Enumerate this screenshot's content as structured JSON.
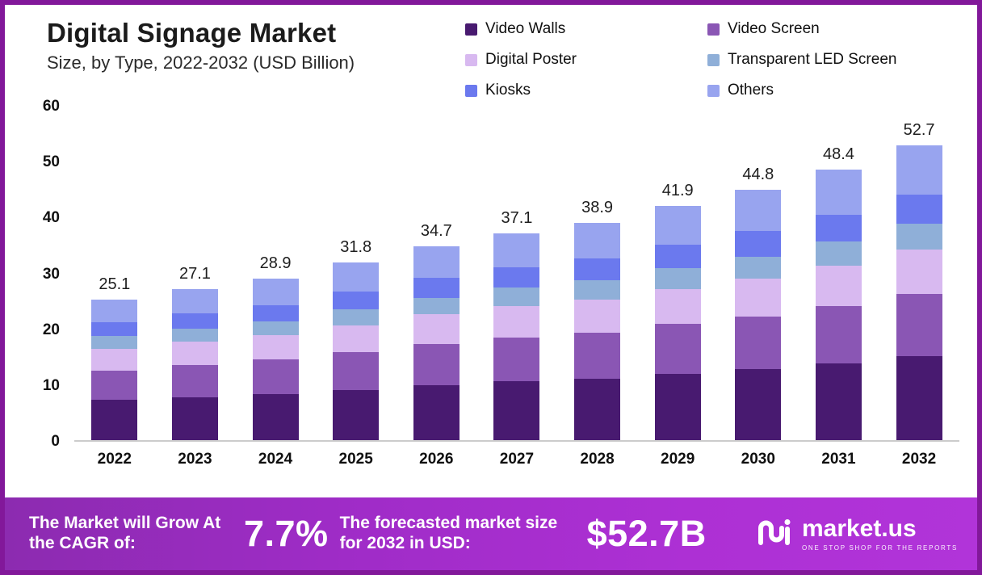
{
  "header": {
    "title": "Digital Signage Market",
    "subtitle": "Size, by Type, 2022-2032 (USD Billion)"
  },
  "chart_data": {
    "type": "bar",
    "stacked": true,
    "title": "Digital Signage Market Size, by Type, 2022-2032 (USD Billion)",
    "categories": [
      "2022",
      "2023",
      "2024",
      "2025",
      "2026",
      "2027",
      "2028",
      "2029",
      "2030",
      "2031",
      "2032"
    ],
    "totals": [
      "25.1",
      "27.1",
      "28.9",
      "31.8",
      "34.7",
      "37.1",
      "38.9",
      "41.9",
      "44.8",
      "48.4",
      "52.7"
    ],
    "series": [
      {
        "name": "Video Walls",
        "color": "#481a70",
        "values": [
          7.2,
          7.7,
          8.2,
          9.0,
          9.8,
          10.5,
          11.0,
          11.9,
          12.7,
          13.7,
          15.0
        ]
      },
      {
        "name": "Video Screen",
        "color": "#8a56b4",
        "values": [
          5.3,
          5.8,
          6.2,
          6.8,
          7.4,
          7.9,
          8.3,
          8.9,
          9.5,
          10.3,
          11.2
        ]
      },
      {
        "name": "Digital Poster",
        "color": "#d8b9f0",
        "values": [
          3.9,
          4.1,
          4.4,
          4.8,
          5.3,
          5.6,
          5.9,
          6.3,
          6.8,
          7.3,
          7.9
        ]
      },
      {
        "name": "Transparent LED Screen",
        "color": "#8fafd8",
        "values": [
          2.2,
          2.4,
          2.5,
          2.8,
          3.0,
          3.3,
          3.4,
          3.7,
          3.9,
          4.3,
          4.6
        ]
      },
      {
        "name": "Kiosks",
        "color": "#6b79ee",
        "values": [
          2.5,
          2.7,
          2.9,
          3.2,
          3.5,
          3.7,
          3.9,
          4.2,
          4.5,
          4.8,
          5.3
        ]
      },
      {
        "name": "Others",
        "color": "#98a4ef",
        "values": [
          4.0,
          4.4,
          4.7,
          5.2,
          5.7,
          6.1,
          6.4,
          6.9,
          7.4,
          8.0,
          8.7
        ]
      }
    ],
    "xlabel": "",
    "ylabel": "",
    "ylim": [
      0,
      60
    ],
    "yticks": [
      0,
      10,
      20,
      30,
      40,
      50,
      60
    ],
    "grid": false,
    "legend_position": "top-right"
  },
  "banner": {
    "cagr_label": "The Market will Grow At the CAGR of:",
    "cagr_value": "7.7%",
    "forecast_label": "The forecasted market size for 2032 in USD:",
    "forecast_value": "$52.7B",
    "brand": "market.us",
    "brand_tagline": "ONE STOP SHOP FOR THE REPORTS"
  }
}
